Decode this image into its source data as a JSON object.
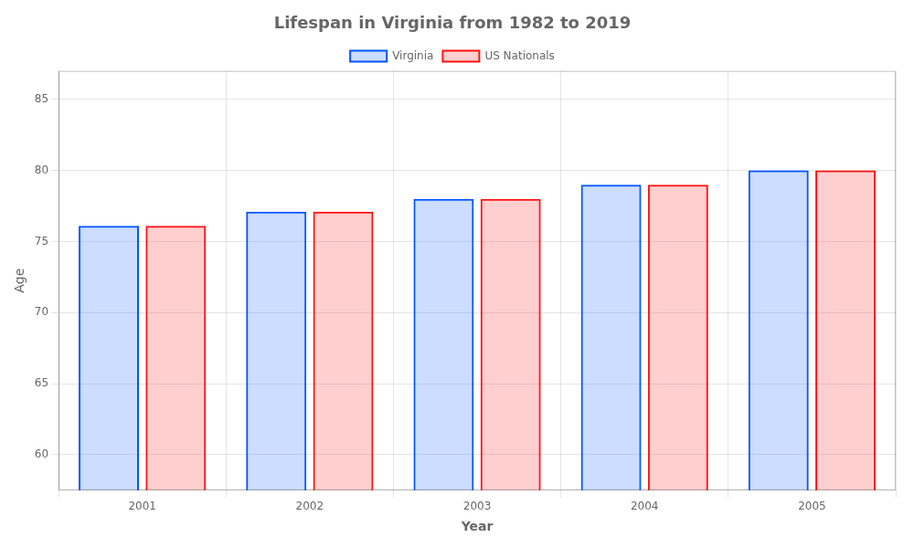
{
  "chart_data": {
    "type": "bar",
    "title": "Lifespan in Virginia from 1982 to 2019",
    "xlabel": "Year",
    "ylabel": "Age",
    "categories": [
      "2001",
      "2002",
      "2003",
      "2004",
      "2005"
    ],
    "series": [
      {
        "name": "Virginia",
        "color": "#0055ff",
        "values": [
          76.1,
          77.1,
          78.0,
          79.0,
          80.0
        ]
      },
      {
        "name": "US Nationals",
        "color": "#ff1111",
        "values": [
          76.1,
          77.1,
          78.0,
          79.0,
          80.0
        ]
      }
    ],
    "ylim": [
      57.5,
      87
    ],
    "yticks": [
      60,
      65,
      70,
      75,
      80,
      85
    ],
    "grid": true,
    "legend": "top"
  }
}
